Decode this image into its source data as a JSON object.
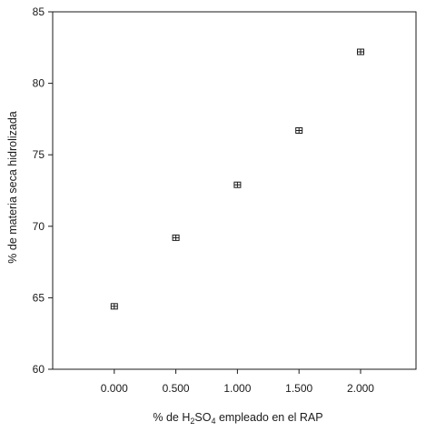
{
  "chart_data": {
    "type": "scatter",
    "xlabel": {
      "prefix": "% de H",
      "sub1": "2",
      "mid": "SO",
      "sub2": "4",
      "suffix": " empleado en el RAP"
    },
    "ylabel": "% de materia seca hidrolizada",
    "xlim": [
      -0.5,
      2.45
    ],
    "ylim": [
      60,
      85
    ],
    "x_ticks": [
      0.0,
      0.5,
      1.0,
      1.5,
      2.0
    ],
    "x_tick_labels": [
      "0.000",
      "0.500",
      "1.000",
      "1.500",
      "2.000"
    ],
    "y_ticks": [
      60,
      65,
      70,
      75,
      80,
      85
    ],
    "y_tick_labels": [
      "60",
      "65",
      "70",
      "75",
      "80",
      "85"
    ],
    "grid": false,
    "series": [
      {
        "x": [
          0.0,
          0.5,
          1.0,
          1.5,
          2.0
        ],
        "y": [
          64.4,
          69.2,
          72.9,
          76.7,
          82.2
        ],
        "error": [
          0.2,
          0.15,
          0.2,
          0.2,
          0.2
        ],
        "marker_color": "#1a1a1a"
      }
    ]
  }
}
